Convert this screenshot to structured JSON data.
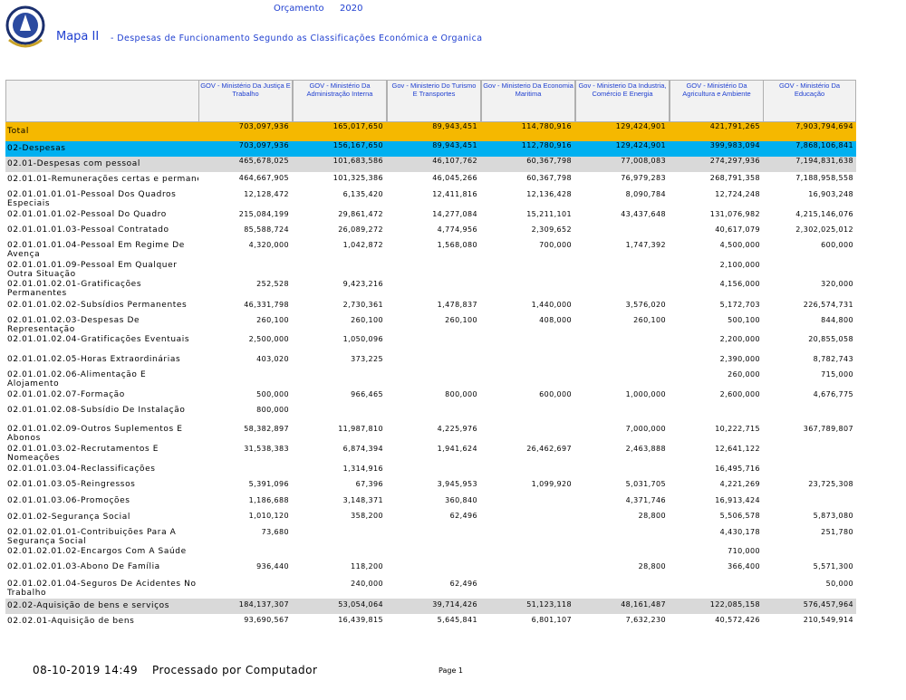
{
  "header": {
    "budget_label": "Orçamento",
    "year": "2020",
    "map": "Mapa II",
    "subtitle": "- Despesas de Funcionamento Segundo as Classificações Económica e Organica"
  },
  "table": {
    "columns": [
      "GOV - Ministério Da Justiça E Trabalho",
      "GOV - Ministério Da Administração Interna",
      "Gov - Ministerio Do Turismo E Transportes",
      "Gov - Ministerio Da Economia Maritima",
      "Gov - Ministerio Da Industria, Comércio E Energia",
      "GOV - Ministério Da Agricultura e Ambiente",
      "GOV - Ministério Da Educação"
    ],
    "rows": [
      {
        "label": "Total",
        "values": [
          "703,097,936",
          "165,017,650",
          "89,943,451",
          "114,780,916",
          "129,424,901",
          "421,791,265",
          "7,903,794,694"
        ]
      },
      {
        "label": "02-Despesas",
        "values": [
          "703,097,936",
          "156,167,650",
          "89,943,451",
          "112,780,916",
          "129,424,901",
          "399,983,094",
          "7,868,106,841"
        ]
      },
      {
        "label": "02.01-Despesas com pessoal",
        "values": [
          "465,678,025",
          "101,683,586",
          "46,107,762",
          "60,367,798",
          "77,008,083",
          "274,297,936",
          "7,194,831,638"
        ]
      },
      {
        "label": "02.01.01-Remunerações certas e permane",
        "values": [
          "464,667,905",
          "101,325,386",
          "46,045,266",
          "60,367,798",
          "76,979,283",
          "268,791,358",
          "7,188,958,558"
        ]
      },
      {
        "label": "02.01.01.01.01-Pessoal Dos Quadros Especiais",
        "values": [
          "12,128,472",
          "6,135,420",
          "12,411,816",
          "12,136,428",
          "8,090,784",
          "12,724,248",
          "16,903,248"
        ]
      },
      {
        "label": "02.01.01.01.02-Pessoal Do Quadro",
        "values": [
          "215,084,199",
          "29,861,472",
          "14,277,084",
          "15,211,101",
          "43,437,648",
          "131,076,982",
          "4,215,146,076"
        ]
      },
      {
        "label": "02.01.01.01.03-Pessoal Contratado",
        "values": [
          "85,588,724",
          "26,089,272",
          "4,774,956",
          "2,309,652",
          null,
          "40,617,079",
          "2,302,025,012"
        ]
      },
      {
        "label": "02.01.01.01.04-Pessoal Em Regime De Avença",
        "values": [
          "4,320,000",
          "1,042,872",
          "1,568,080",
          "700,000",
          "1,747,392",
          "4,500,000",
          "600,000"
        ]
      },
      {
        "label": "02.01.01.01.09-Pessoal Em Qualquer Outra Situação",
        "values": [
          null,
          null,
          null,
          null,
          null,
          "2,100,000",
          null
        ]
      },
      {
        "label": "02.01.01.02.01-Gratificações Permanentes",
        "values": [
          "252,528",
          "9,423,216",
          null,
          null,
          null,
          "4,156,000",
          "320,000"
        ]
      },
      {
        "label": "02.01.01.02.02-Subsídios Permanentes",
        "values": [
          "46,331,798",
          "2,730,361",
          "1,478,837",
          "1,440,000",
          "3,576,020",
          "5,172,703",
          "226,574,731"
        ]
      },
      {
        "label": "02.01.01.02.03-Despesas De Representação",
        "values": [
          "260,100",
          "260,100",
          "260,100",
          "408,000",
          "260,100",
          "500,100",
          "844,800"
        ]
      },
      {
        "label": "02.01.01.02.04-Gratificações Eventuais",
        "values": [
          "2,500,000",
          "1,050,096",
          null,
          null,
          null,
          "2,200,000",
          "20,855,058"
        ]
      },
      {
        "label": "02.01.01.02.05-Horas Extraordinárias",
        "values": [
          "403,020",
          "373,225",
          null,
          null,
          null,
          "2,390,000",
          "8,782,743"
        ]
      },
      {
        "label": "02.01.01.02.06-Alimentação E Alojamento",
        "values": [
          null,
          null,
          null,
          null,
          null,
          "260,000",
          "715,000"
        ]
      },
      {
        "label": "02.01.01.02.07-Formação",
        "values": [
          "500,000",
          "966,465",
          "800,000",
          "600,000",
          "1,000,000",
          "2,600,000",
          "4,676,775"
        ]
      },
      {
        "label": "02.01.01.02.08-Subsídio De Instalação",
        "values": [
          "800,000",
          null,
          null,
          null,
          null,
          null,
          null
        ]
      },
      {
        "label": "02.01.01.02.09-Outros Suplementos E Abonos",
        "values": [
          "58,382,897",
          "11,987,810",
          "4,225,976",
          null,
          "7,000,000",
          "10,222,715",
          "367,789,807"
        ]
      },
      {
        "label": "02.01.01.03.02-Recrutamentos E Nomeações",
        "values": [
          "31,538,383",
          "6,874,394",
          "1,941,624",
          "26,462,697",
          "2,463,888",
          "12,641,122",
          null
        ]
      },
      {
        "label": "02.01.01.03.04-Reclassificações",
        "values": [
          null,
          "1,314,916",
          null,
          null,
          null,
          "16,495,716",
          null
        ]
      },
      {
        "label": "02.01.01.03.05-Reingressos",
        "values": [
          "5,391,096",
          "67,396",
          "3,945,953",
          "1,099,920",
          "5,031,705",
          "4,221,269",
          "23,725,308"
        ]
      },
      {
        "label": "02.01.01.03.06-Promoções",
        "values": [
          "1,186,688",
          "3,148,371",
          "360,840",
          null,
          "4,371,746",
          "16,913,424",
          null
        ]
      },
      {
        "label": "02.01.02-Segurança Social",
        "values": [
          "1,010,120",
          "358,200",
          "62,496",
          null,
          "28,800",
          "5,506,578",
          "5,873,080"
        ]
      },
      {
        "label": "02.01.02.01.01-Contribuições Para A Segurança Social",
        "values": [
          "73,680",
          null,
          null,
          null,
          null,
          "4,430,178",
          "251,780"
        ]
      },
      {
        "label": "02.01.02.01.02-Encargos Com A Saúde",
        "values": [
          null,
          null,
          null,
          null,
          null,
          "710,000",
          null
        ]
      },
      {
        "label": "02.01.02.01.03-Abono De Família",
        "values": [
          "936,440",
          "118,200",
          null,
          null,
          "28,800",
          "366,400",
          "5,571,300"
        ]
      },
      {
        "label": "02.01.02.01.04-Seguros De Acidentes No Trabalho",
        "values": [
          null,
          "240,000",
          "62,496",
          null,
          null,
          null,
          "50,000"
        ]
      },
      {
        "label": "02.02-Aquisição de bens e serviços",
        "values": [
          "184,137,307",
          "53,054,064",
          "39,714,426",
          "51,123,118",
          "48,161,487",
          "122,085,158",
          "576,457,964"
        ]
      },
      {
        "label": "02.02.01-Aquisição de bens",
        "values": [
          "93,690,567",
          "16,439,815",
          "5,645,841",
          "6,801,107",
          "7,632,230",
          "40,572,426",
          "210,549,914"
        ]
      }
    ]
  },
  "footer": {
    "datetime": "08-10-2019 14:49",
    "processed": "Processado por Computador",
    "page": "Page 1"
  }
}
